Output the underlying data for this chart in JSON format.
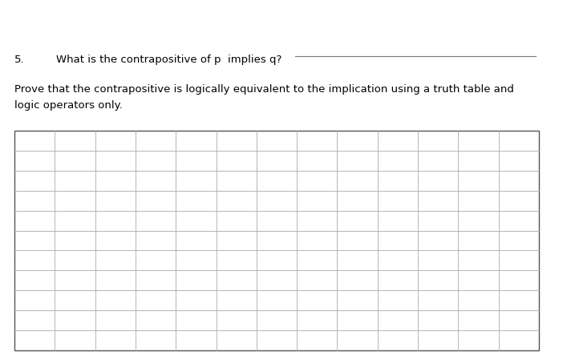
{
  "title_number": "5.",
  "question_text": "What is the contrapositive of p  implies q?",
  "proof_line1": "Prove that the contrapositive is logically equivalent to the implication using a truth table and",
  "proof_line2": "logic operators only.",
  "background_color": "#ffffff",
  "text_color": "#000000",
  "table_border_color": "#555555",
  "table_grid_color": "#aaaaaa",
  "num_cols": 13,
  "num_rows": 11,
  "font_size_text": 9.5
}
